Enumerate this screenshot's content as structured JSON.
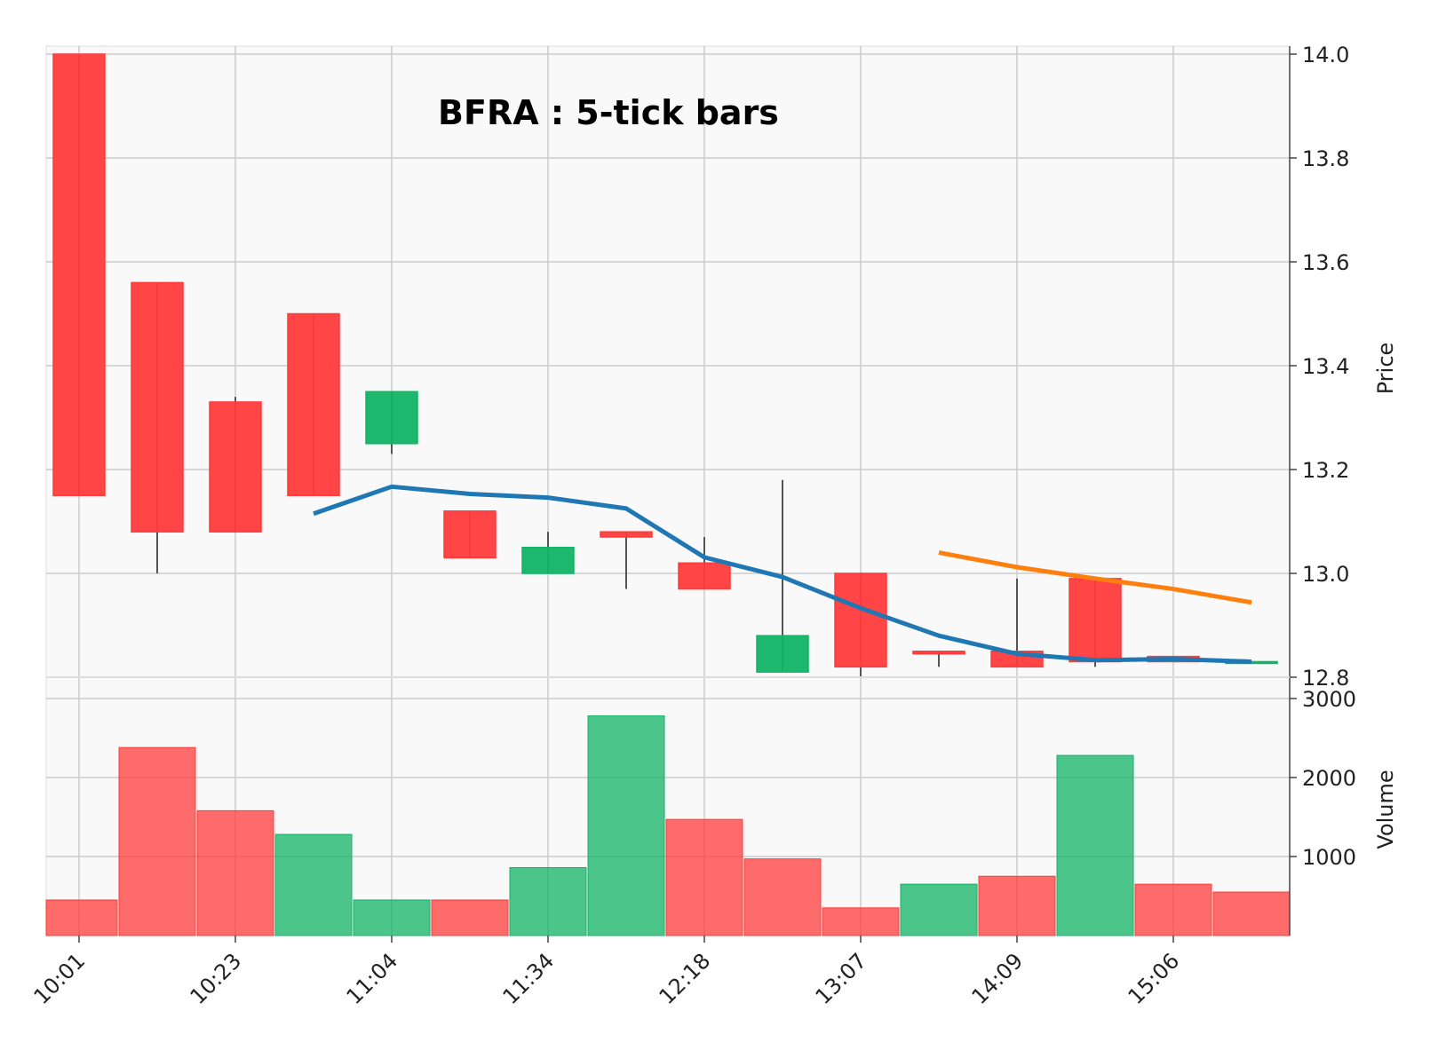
{
  "chart_data": {
    "type": "candlestick",
    "title": "BFRA : 5-tick bars",
    "price_axis": {
      "label": "Price",
      "ylim": [
        12.8,
        14.0
      ],
      "ticks": [
        "14.0",
        "13.8",
        "13.6",
        "13.4",
        "13.2",
        "13.0",
        "12.8"
      ],
      "side": "right"
    },
    "volume_axis": {
      "label": "Volume",
      "ylim": [
        0,
        3000
      ],
      "ticks": [
        "3000",
        "2000",
        "1000"
      ],
      "side": "right"
    },
    "x_tick_labels": [
      "10:01",
      "10:23",
      "11:04",
      "11:34",
      "12:18",
      "13:07",
      "14:09",
      "15:06"
    ],
    "x_tick_indices": [
      0,
      2,
      4,
      6,
      8,
      10,
      12,
      14
    ],
    "grid": true,
    "up_color": "#12b366",
    "down_color": "#ff3b3b",
    "candles": [
      {
        "open": 14.0,
        "high": 14.0,
        "low": 13.15,
        "close": 13.15
      },
      {
        "open": 13.56,
        "high": 13.56,
        "low": 13.0,
        "close": 13.08
      },
      {
        "open": 13.33,
        "high": 13.34,
        "low": 13.08,
        "close": 13.08
      },
      {
        "open": 13.5,
        "high": 13.5,
        "low": 13.15,
        "close": 13.15
      },
      {
        "open": 13.25,
        "high": 13.35,
        "low": 13.23,
        "close": 13.35
      },
      {
        "open": 13.12,
        "high": 13.12,
        "low": 13.03,
        "close": 13.03
      },
      {
        "open": 13.0,
        "high": 13.08,
        "low": 13.0,
        "close": 13.05
      },
      {
        "open": 13.08,
        "high": 13.08,
        "low": 12.97,
        "close": 13.07
      },
      {
        "open": 13.02,
        "high": 13.07,
        "low": 12.97,
        "close": 12.97
      },
      {
        "open": 12.81,
        "high": 13.18,
        "low": 12.81,
        "close": 12.88
      },
      {
        "open": 13.0,
        "high": 13.0,
        "low": 12.8,
        "close": 12.82
      },
      {
        "open": 12.85,
        "high": 12.85,
        "low": 12.82,
        "close": 12.845
      },
      {
        "open": 12.85,
        "high": 12.99,
        "low": 12.82,
        "close": 12.82
      },
      {
        "open": 12.99,
        "high": 12.99,
        "low": 12.82,
        "close": 12.83
      },
      {
        "open": 12.84,
        "high": 12.84,
        "low": 12.83,
        "close": 12.83
      },
      {
        "open": 12.83,
        "high": 12.83,
        "low": 12.83,
        "close": 12.83
      }
    ],
    "volume": [
      {
        "value": 450,
        "color": "down"
      },
      {
        "value": 2380,
        "color": "down"
      },
      {
        "value": 1580,
        "color": "down"
      },
      {
        "value": 1280,
        "color": "up"
      },
      {
        "value": 450,
        "color": "up"
      },
      {
        "value": 450,
        "color": "down"
      },
      {
        "value": 860,
        "color": "up"
      },
      {
        "value": 2780,
        "color": "up"
      },
      {
        "value": 1470,
        "color": "down"
      },
      {
        "value": 970,
        "color": "down"
      },
      {
        "value": 350,
        "color": "down"
      },
      {
        "value": 650,
        "color": "up"
      },
      {
        "value": 750,
        "color": "down"
      },
      {
        "value": 2280,
        "color": "up"
      },
      {
        "value": 650,
        "color": "down"
      },
      {
        "value": 550,
        "color": "down"
      }
    ],
    "series": [
      {
        "color": "#1f77b4",
        "values": [
          null,
          null,
          null,
          13.115,
          13.167,
          13.153,
          13.146,
          13.125,
          13.031,
          12.993,
          12.933,
          12.88,
          12.845,
          12.833,
          12.835,
          12.83
        ]
      },
      {
        "color": "#ff7f0e",
        "values": [
          null,
          null,
          null,
          null,
          null,
          null,
          null,
          null,
          null,
          null,
          null,
          13.04,
          13.012,
          12.99,
          12.97,
          12.944
        ]
      }
    ]
  }
}
